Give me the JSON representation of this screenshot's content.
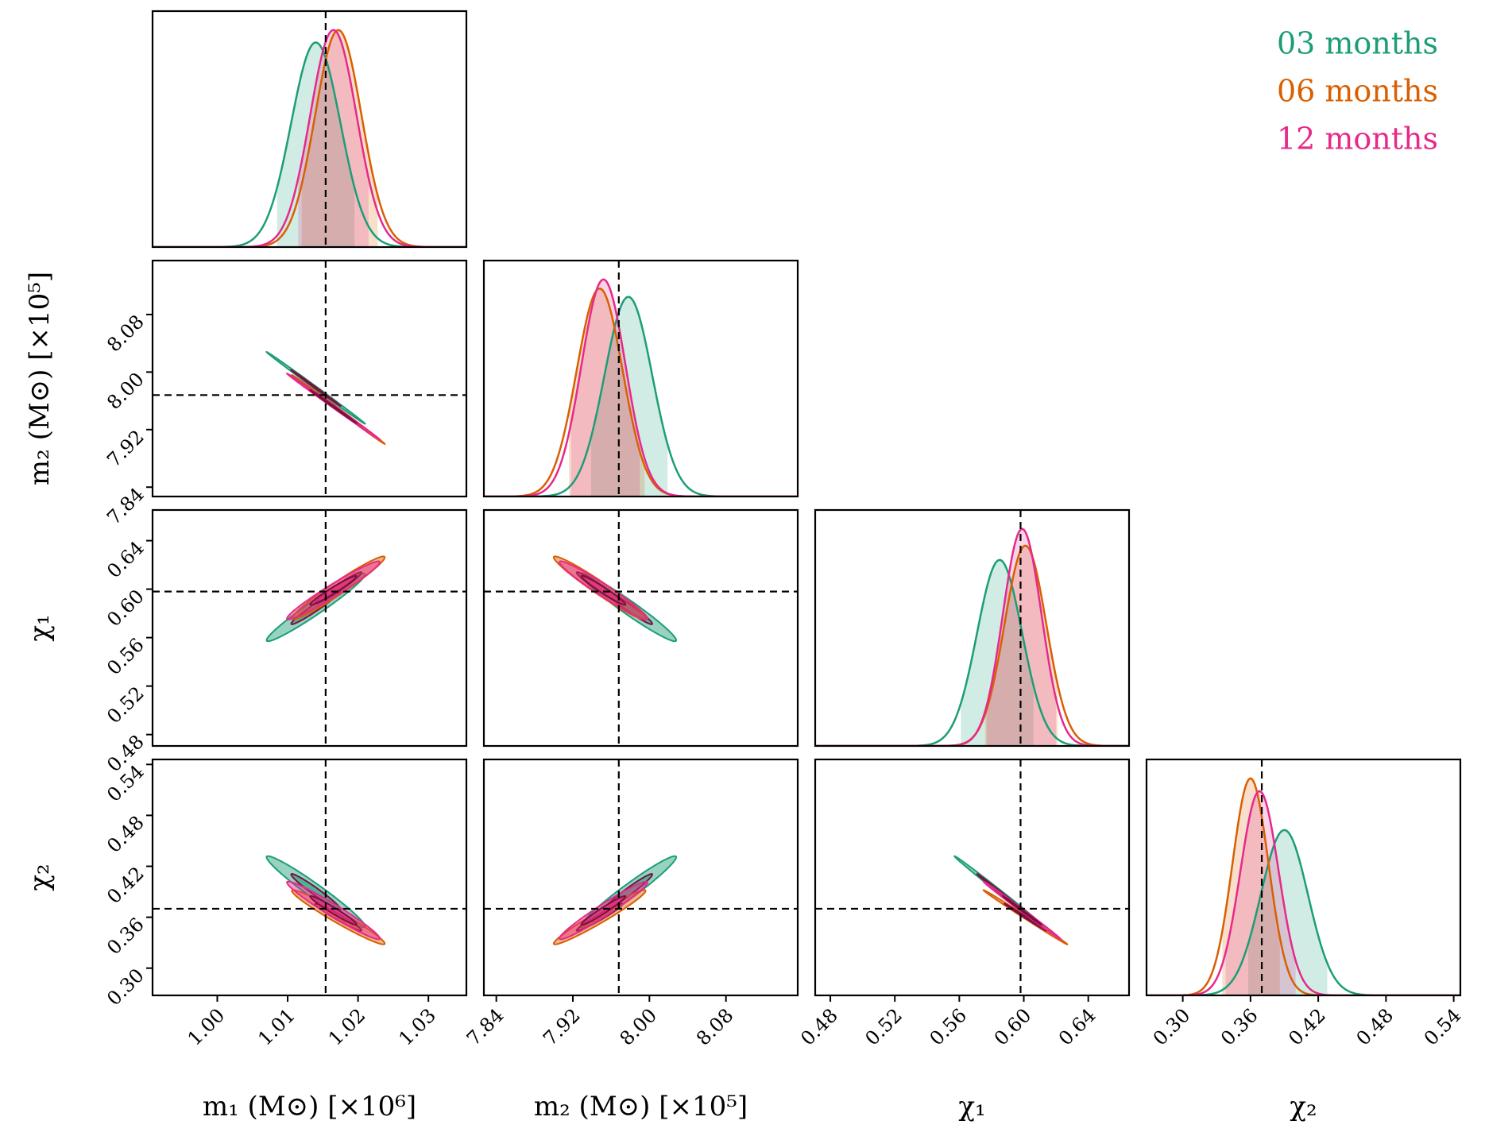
{
  "chart_data": {
    "type": "corner",
    "parameters": [
      {
        "label": "m₁ (M⊙) [×10⁶]",
        "lim": [
          0.9908,
          1.0354
        ],
        "ticks": [
          {
            "value": 1,
            "label": "1.00"
          },
          1.01,
          1.02,
          1.03
        ],
        "truth": 1.0154
      },
      {
        "label": "m₂ (M⊙) [×10⁵]",
        "lim": [
          7.827,
          8.155
        ],
        "ticks": [
          7.84,
          7.92,
          {
            "value": 8,
            "label": "8.00"
          },
          8.08
        ],
        "truth": 7.968
      },
      {
        "label": "χ₁",
        "lim": [
          0.4706,
          0.6653
        ],
        "ticks": [
          0.48,
          0.52,
          0.56,
          {
            "value": 0.6,
            "label": "0.60"
          },
          0.64
        ],
        "truth": 0.598
      },
      {
        "label": "χ₂",
        "lim": [
          0.2679,
          0.5459
        ],
        "ticks": [
          {
            "value": 0.3,
            "label": "0.30"
          },
          0.36,
          0.42,
          0.48,
          0.54
        ],
        "truth": 0.37
      }
    ],
    "series": [
      {
        "name": "03 months",
        "color": "#1b9e77",
        "means": [
          1.014,
          7.978,
          0.585,
          0.39
        ],
        "sds": [
          0.0035,
          0.025,
          0.014,
          0.021
        ],
        "intervals": [
          [
            1.0085,
            1.0195
          ],
          [
            7.939,
            8.019
          ],
          [
            0.561,
            0.606
          ],
          [
            0.358,
            0.428
          ]
        ]
      },
      {
        "name": "06 months",
        "color": "#d95f02",
        "means": [
          1.0172,
          7.948,
          0.601,
          0.36
        ],
        "sds": [
          0.0033,
          0.024,
          0.013,
          0.016
        ],
        "intervals": [
          [
            1.012,
            1.0228
          ],
          [
            7.916,
            7.995
          ],
          [
            0.576,
            0.621
          ],
          [
            0.335,
            0.386
          ]
        ]
      },
      {
        "name": "12 months",
        "color": "#e7298a",
        "means": [
          1.0165,
          7.952,
          0.599,
          0.368
        ],
        "sds": [
          0.0033,
          0.023,
          0.012,
          0.017
        ],
        "intervals": [
          [
            1.0115,
            1.0215
          ],
          [
            7.918,
            7.99
          ],
          [
            0.577,
            0.62
          ],
          [
            0.338,
            0.4
          ]
        ]
      }
    ],
    "correlations": [
      [
        1,
        -0.999,
        0.97,
        -0.97
      ],
      [
        -0.999,
        1,
        -0.97,
        0.97
      ],
      [
        0.97,
        -0.97,
        1,
        -0.998
      ],
      [
        -0.97,
        0.97,
        -0.998,
        1
      ]
    ]
  }
}
